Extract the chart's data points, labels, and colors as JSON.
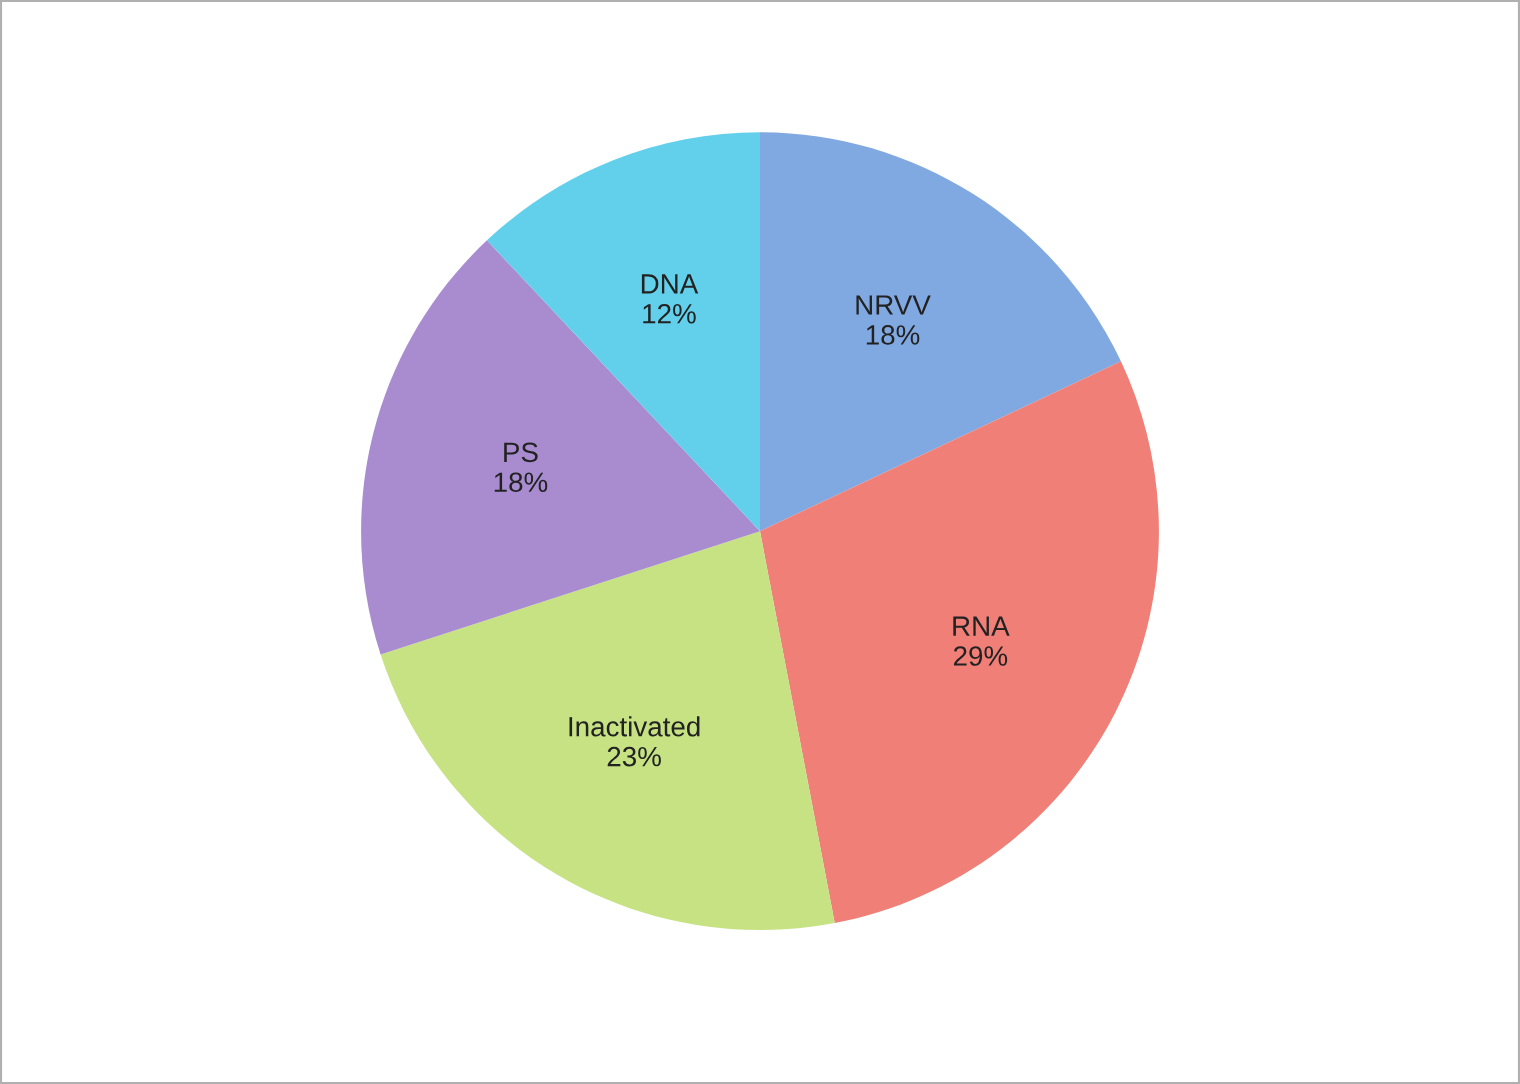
{
  "chart_data": {
    "type": "pie",
    "categories": [
      "NRVV",
      "RNA",
      "Inactivated",
      "PS",
      "DNA"
    ],
    "values": [
      18,
      29,
      23,
      18,
      12
    ],
    "value_labels": [
      "18%",
      "29%",
      "23%",
      "18%",
      "12%"
    ],
    "colors": [
      "#80a9e2",
      "#ef7f77",
      "#c6e283",
      "#a88ccf",
      "#62d0eb"
    ],
    "legend": false
  }
}
